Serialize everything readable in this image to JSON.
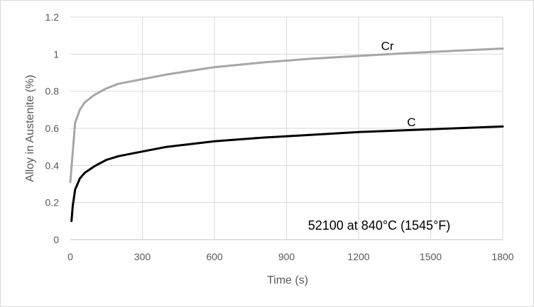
{
  "chart_data": {
    "type": "line",
    "title": "",
    "xlabel": "Time (s)",
    "ylabel": "Alloy in Austenite (%)",
    "xlim": [
      0,
      1800
    ],
    "ylim": [
      0,
      1.2
    ],
    "xticks": [
      0,
      300,
      600,
      900,
      1200,
      1500,
      1800
    ],
    "yticks": [
      0,
      0.2,
      0.4,
      0.6,
      0.8,
      1,
      1.2
    ],
    "xtick_labels": [
      "0",
      "300",
      "600",
      "900",
      "1200",
      "1500",
      "1800"
    ],
    "ytick_labels": [
      "0",
      "0.2",
      "0.4",
      "0.6",
      "0.8",
      "1",
      "1.2"
    ],
    "grid": true,
    "legend": "none",
    "annotation": "52100 at 840°C (1545°F)",
    "series": [
      {
        "name": "Cr",
        "color": "#a6a6a6",
        "x": [
          0,
          20,
          40,
          60,
          100,
          150,
          200,
          300,
          400,
          500,
          600,
          800,
          1000,
          1200,
          1400,
          1600,
          1800
        ],
        "y": [
          0.31,
          0.63,
          0.7,
          0.74,
          0.78,
          0.815,
          0.84,
          0.865,
          0.89,
          0.91,
          0.93,
          0.955,
          0.975,
          0.99,
          1.005,
          1.018,
          1.03
        ]
      },
      {
        "name": "C",
        "color": "#000000",
        "x": [
          5,
          10,
          20,
          40,
          60,
          100,
          150,
          200,
          300,
          400,
          500,
          600,
          800,
          1000,
          1200,
          1400,
          1600,
          1800
        ],
        "y": [
          0.1,
          0.18,
          0.27,
          0.33,
          0.36,
          0.395,
          0.43,
          0.45,
          0.475,
          0.5,
          0.515,
          0.53,
          0.55,
          0.565,
          0.58,
          0.59,
          0.6,
          0.61
        ]
      }
    ]
  }
}
